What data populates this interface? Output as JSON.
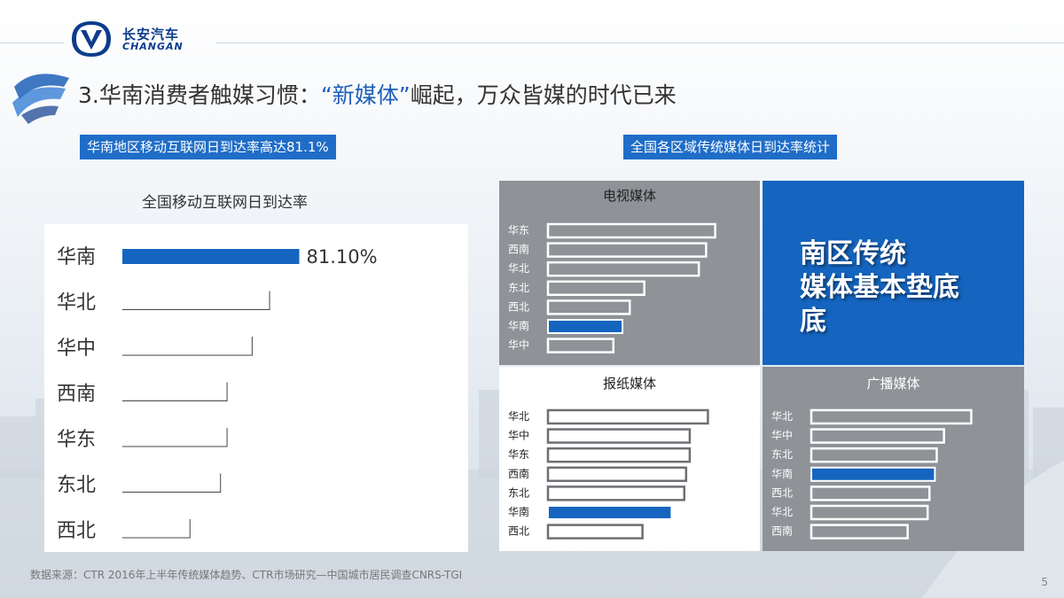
{
  "header": {
    "brand_cn": "长安汽车",
    "brand_en": "CHANGAN",
    "title_prefix": "3.华南消费者触媒习惯：",
    "title_highlight": "“新媒体”",
    "title_suffix": "崛起，万众皆媒的时代已来"
  },
  "left": {
    "subheader": "华南地区移动互联网日到达率高达81.1%"
  },
  "right": {
    "subheader": "全国各区域传统媒体日到达率统计",
    "callout_line1": "南区传统",
    "callout_line2": "媒体基本垫底",
    "callout_line3": "底"
  },
  "colors": {
    "accent": "#1f6dc7",
    "bar_highlight": "#1565c0",
    "grey_panel": "#8f9297",
    "callout": "#1565c0"
  },
  "chart_data": [
    {
      "type": "bar",
      "orientation": "horizontal",
      "title": "全国移动互联网日到达率",
      "categories": [
        "华南",
        "华北",
        "华中",
        "西南",
        "华东",
        "东北",
        "西北"
      ],
      "values": [
        81.1,
        67.5,
        59.5,
        48.0,
        48.0,
        45.0,
        31.0
      ],
      "data_labels": [
        "81.10%"
      ],
      "highlight": "华南",
      "xlim": [
        0,
        100
      ]
    },
    {
      "type": "bar",
      "orientation": "horizontal",
      "title": "电视媒体",
      "categories": [
        "华东",
        "西南",
        "华北",
        "东北",
        "西北",
        "华南",
        "华中"
      ],
      "values": [
        92,
        87,
        83,
        53,
        45,
        41,
        36
      ],
      "highlight": "华南",
      "xlim": [
        0,
        100
      ]
    },
    {
      "type": "bar",
      "orientation": "horizontal",
      "title": "报纸媒体",
      "categories": [
        "华北",
        "华中",
        "华东",
        "西南",
        "东北",
        "华南",
        "西北"
      ],
      "values": [
        88,
        78,
        78,
        76,
        75,
        68,
        52
      ],
      "highlight": "华南",
      "xlim": [
        0,
        100
      ]
    },
    {
      "type": "bar",
      "orientation": "horizontal",
      "title": "广播媒体",
      "categories": [
        "华北",
        "华中",
        "东北",
        "华南",
        "西北",
        "华北",
        "西南"
      ],
      "values": [
        88,
        73,
        69,
        68,
        65,
        64,
        53
      ],
      "highlight": "华南",
      "xlim": [
        0,
        100
      ]
    }
  ],
  "footer": {
    "source": "数据来源：CTR 2016年上半年传统媒体趋势、CTR市场研究—中国城市居民调查CNRS-TGI",
    "page": "5"
  }
}
